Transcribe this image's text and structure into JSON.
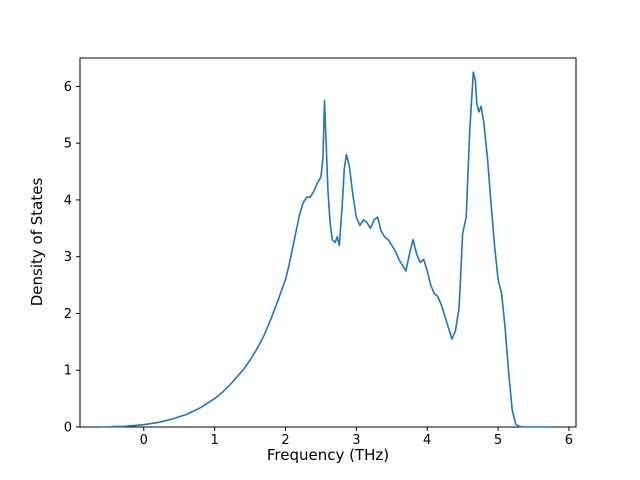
{
  "figure": {
    "background": "#ffffff"
  },
  "chart_data": {
    "type": "line",
    "title": "",
    "xlabel": "Frequency (THz)",
    "ylabel": "Density of States",
    "xlim": [
      -0.9,
      6.1
    ],
    "ylim": [
      0,
      6.5
    ],
    "xticks": [
      0,
      1,
      2,
      3,
      4,
      5,
      6
    ],
    "yticks": [
      0,
      1,
      2,
      3,
      4,
      5,
      6
    ],
    "grid": false,
    "legend": null,
    "series": [
      {
        "name": "density-of-states",
        "color": "#1f77b4",
        "x": [
          -0.6,
          -0.5,
          -0.4,
          -0.3,
          -0.2,
          -0.1,
          0.0,
          0.1,
          0.2,
          0.3,
          0.4,
          0.5,
          0.6,
          0.7,
          0.8,
          0.9,
          1.0,
          1.1,
          1.2,
          1.3,
          1.4,
          1.5,
          1.6,
          1.7,
          1.8,
          1.9,
          2.0,
          2.05,
          2.1,
          2.15,
          2.2,
          2.25,
          2.3,
          2.35,
          2.4,
          2.45,
          2.5,
          2.53,
          2.55,
          2.57,
          2.6,
          2.63,
          2.66,
          2.7,
          2.73,
          2.76,
          2.8,
          2.83,
          2.86,
          2.9,
          2.95,
          3.0,
          3.05,
          3.1,
          3.15,
          3.2,
          3.25,
          3.3,
          3.35,
          3.4,
          3.45,
          3.5,
          3.55,
          3.6,
          3.65,
          3.7,
          3.75,
          3.8,
          3.85,
          3.9,
          3.95,
          4.0,
          4.05,
          4.1,
          4.15,
          4.2,
          4.25,
          4.3,
          4.35,
          4.4,
          4.45,
          4.5,
          4.55,
          4.6,
          4.65,
          4.68,
          4.7,
          4.73,
          4.76,
          4.8,
          4.85,
          4.9,
          4.95,
          5.0,
          5.05,
          5.1,
          5.15,
          5.2,
          5.25,
          5.3,
          5.4,
          5.5,
          5.6,
          5.75
        ],
        "y": [
          0.0,
          0.0,
          0.01,
          0.01,
          0.02,
          0.03,
          0.04,
          0.06,
          0.08,
          0.11,
          0.14,
          0.18,
          0.22,
          0.28,
          0.34,
          0.42,
          0.5,
          0.6,
          0.72,
          0.86,
          1.0,
          1.18,
          1.38,
          1.62,
          1.92,
          2.25,
          2.6,
          2.85,
          3.15,
          3.45,
          3.75,
          3.95,
          4.05,
          4.05,
          4.15,
          4.3,
          4.4,
          4.75,
          5.75,
          5.1,
          4.15,
          3.6,
          3.3,
          3.25,
          3.35,
          3.2,
          3.9,
          4.55,
          4.8,
          4.6,
          4.1,
          3.7,
          3.55,
          3.65,
          3.6,
          3.5,
          3.65,
          3.7,
          3.45,
          3.35,
          3.3,
          3.2,
          3.1,
          2.95,
          2.85,
          2.75,
          3.05,
          3.3,
          3.05,
          2.9,
          2.95,
          2.75,
          2.5,
          2.35,
          2.3,
          2.15,
          1.95,
          1.75,
          1.55,
          1.7,
          2.1,
          3.4,
          3.7,
          5.2,
          6.25,
          6.1,
          5.7,
          5.55,
          5.65,
          5.35,
          4.75,
          3.95,
          3.2,
          2.6,
          2.35,
          1.75,
          0.95,
          0.3,
          0.05,
          0.01,
          0.0,
          0.0,
          0.0,
          0.0
        ]
      }
    ]
  }
}
